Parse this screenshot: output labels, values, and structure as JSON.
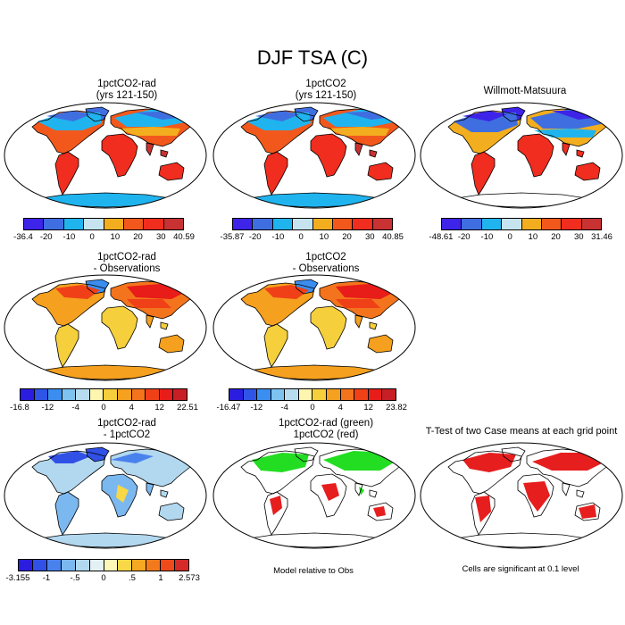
{
  "main_title": "DJF TSA (C)",
  "palettes": {
    "abs": [
      "#3d24e8",
      "#3f6ee0",
      "#20b4ef",
      "#c5e4f0",
      "#f3ae1f",
      "#f2581b",
      "#f02d1e",
      "#c93232"
    ],
    "bias": [
      "#2b1de0",
      "#2f55e6",
      "#3b8ef0",
      "#7ec3ef",
      "#b7dcef",
      "#fdf5b0",
      "#f6cf3c",
      "#f5a01e",
      "#f3741c",
      "#f04018",
      "#e81c19",
      "#c81e26"
    ],
    "diff": [
      "#2b1de0",
      "#3150e6",
      "#4a82ed",
      "#7cb8f0",
      "#b2d8f0",
      "#e3f1f5",
      "#fdf6b6",
      "#f8d846",
      "#f6a822",
      "#f27a1c",
      "#ef4a1a",
      "#d52a27"
    ]
  },
  "panels": [
    {
      "id": "p1",
      "title1": "1pctCO2-rad",
      "title2": "(yrs 121-150)",
      "style": "abs",
      "colorbar": {
        "palette": "abs",
        "labels": [
          "-36.4",
          "-20",
          "-10",
          "0",
          "10",
          "20",
          "30",
          "40.59"
        ]
      }
    },
    {
      "id": "p2",
      "title1": "1pctCO2",
      "title2": "(yrs 121-150)",
      "style": "abs",
      "colorbar": {
        "palette": "abs",
        "labels": [
          "-35.87",
          "-20",
          "-10",
          "0",
          "10",
          "20",
          "30",
          "40.85"
        ]
      }
    },
    {
      "id": "p3",
      "title1": "Willmott-Matsuura",
      "title2": "",
      "style": "abs_obs",
      "colorbar": {
        "palette": "abs",
        "labels": [
          "-48.61",
          "-20",
          "-10",
          "0",
          "10",
          "20",
          "30",
          "31.46"
        ]
      }
    },
    {
      "id": "p4",
      "title1": "1pctCO2-rad",
      "title2": "- Observations",
      "style": "bias",
      "colorbar": {
        "palette": "bias",
        "labels": [
          "-16.8",
          "-12",
          "-4",
          "0",
          "4",
          "12",
          "22.51"
        ]
      }
    },
    {
      "id": "p5",
      "title1": "1pctCO2",
      "title2": "- Observations",
      "style": "bias",
      "colorbar": {
        "palette": "bias",
        "labels": [
          "-16.47",
          "-12",
          "-4",
          "0",
          "4",
          "12",
          "23.82"
        ]
      }
    },
    {
      "id": "p7",
      "title1": "1pctCO2-rad",
      "title2": "- 1pctCO2",
      "style": "diff",
      "colorbar": {
        "palette": "diff",
        "labels": [
          "-3.155",
          "-1",
          "-.5",
          "0",
          ".5",
          "1",
          "2.573"
        ]
      }
    },
    {
      "id": "p8",
      "title1": "1pctCO2-rad (green)",
      "title2": "1pctCO2 (red)",
      "style": "model",
      "note": "Model relative to Obs"
    },
    {
      "id": "p9",
      "title1": "T-Test of two Case means at each grid point",
      "title2": "",
      "style": "ttest",
      "note": "Cells are significant at 0.1 level"
    }
  ]
}
